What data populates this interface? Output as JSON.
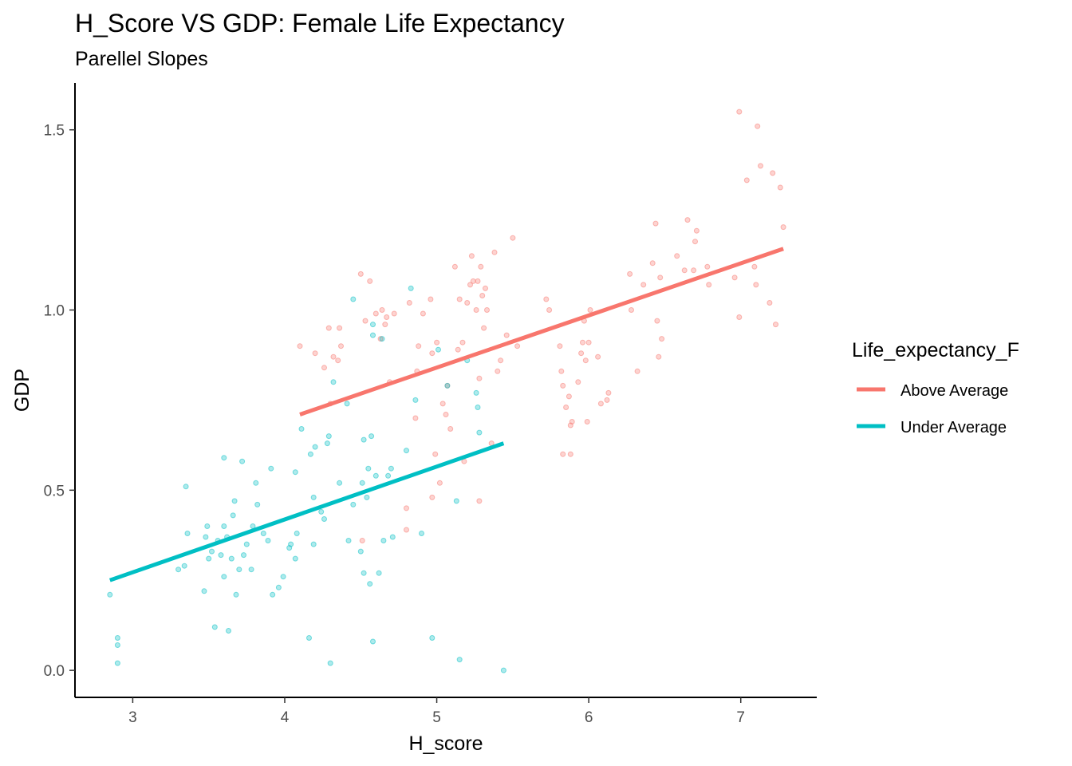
{
  "chart_data": {
    "type": "scatter",
    "title": "H_Score VS GDP: Female Life Expectancy",
    "subtitle": "Parellel Slopes",
    "xlabel": "H_score",
    "ylabel": "GDP",
    "xlim": [
      2.62,
      7.5
    ],
    "ylim": [
      -0.075,
      1.63
    ],
    "xticks": [
      3,
      4,
      5,
      6,
      7
    ],
    "yticks": [
      0.0,
      0.5,
      1.0,
      1.5
    ],
    "ytick_labels": [
      "0.0",
      "0.5",
      "1.0",
      "1.5"
    ],
    "grid": false,
    "legend": {
      "title": "Life_expectancy_F",
      "placement": "right"
    },
    "series": [
      {
        "name": "Above Average",
        "color": "#F8766D",
        "trend_line": [
          [
            4.1,
            0.71
          ],
          [
            7.28,
            1.17
          ]
        ],
        "points": [
          [
            4.1,
            0.9
          ],
          [
            4.2,
            0.88
          ],
          [
            4.26,
            0.84
          ],
          [
            4.29,
            0.95
          ],
          [
            4.32,
            0.87
          ],
          [
            4.36,
            0.95
          ],
          [
            4.37,
            0.9
          ],
          [
            4.3,
            0.74
          ],
          [
            4.35,
            0.86
          ],
          [
            4.5,
            1.1
          ],
          [
            4.56,
            1.08
          ],
          [
            4.51,
            0.36
          ],
          [
            4.53,
            0.97
          ],
          [
            4.6,
            0.99
          ],
          [
            4.63,
            0.92
          ],
          [
            4.64,
            1.0
          ],
          [
            4.66,
            0.96
          ],
          [
            4.67,
            0.98
          ],
          [
            4.69,
            0.8
          ],
          [
            4.72,
            0.99
          ],
          [
            4.8,
            0.45
          ],
          [
            4.8,
            0.39
          ],
          [
            4.82,
            1.02
          ],
          [
            4.86,
            0.7
          ],
          [
            4.87,
            0.83
          ],
          [
            4.88,
            0.9
          ],
          [
            4.91,
            0.99
          ],
          [
            4.96,
            1.03
          ],
          [
            4.97,
            0.88
          ],
          [
            4.99,
            0.6
          ],
          [
            4.97,
            0.48
          ],
          [
            5.0,
            0.91
          ],
          [
            5.02,
            0.52
          ],
          [
            5.04,
            0.74
          ],
          [
            5.06,
            0.71
          ],
          [
            5.07,
            0.79
          ],
          [
            5.09,
            0.67
          ],
          [
            5.12,
            1.12
          ],
          [
            5.14,
            0.89
          ],
          [
            5.15,
            1.03
          ],
          [
            5.17,
            0.91
          ],
          [
            5.18,
            0.58
          ],
          [
            5.2,
            1.02
          ],
          [
            5.22,
            1.07
          ],
          [
            5.23,
            1.15
          ],
          [
            5.24,
            1.08
          ],
          [
            5.26,
            1.0
          ],
          [
            5.27,
            1.08
          ],
          [
            5.28,
            0.81
          ],
          [
            5.29,
            1.12
          ],
          [
            5.3,
            1.04
          ],
          [
            5.31,
            0.95
          ],
          [
            5.32,
            1.06
          ],
          [
            5.33,
            1.0
          ],
          [
            5.28,
            0.47
          ],
          [
            5.36,
            0.63
          ],
          [
            5.38,
            1.16
          ],
          [
            5.4,
            0.83
          ],
          [
            5.42,
            0.86
          ],
          [
            5.46,
            0.93
          ],
          [
            5.5,
            1.2
          ],
          [
            5.53,
            0.9
          ],
          [
            5.72,
            1.03
          ],
          [
            5.74,
            1.0
          ],
          [
            5.81,
            0.9
          ],
          [
            5.82,
            0.83
          ],
          [
            5.83,
            0.79
          ],
          [
            5.83,
            0.6
          ],
          [
            5.85,
            0.73
          ],
          [
            5.87,
            0.76
          ],
          [
            5.88,
            0.68
          ],
          [
            5.89,
            0.69
          ],
          [
            5.88,
            0.6
          ],
          [
            5.93,
            0.8
          ],
          [
            5.95,
            0.88
          ],
          [
            5.96,
            0.91
          ],
          [
            5.97,
            0.97
          ],
          [
            5.98,
            0.86
          ],
          [
            5.99,
            0.69
          ],
          [
            6.0,
            0.91
          ],
          [
            6.01,
            1.0
          ],
          [
            6.06,
            0.87
          ],
          [
            6.08,
            0.74
          ],
          [
            6.12,
            0.75
          ],
          [
            6.13,
            0.77
          ],
          [
            6.27,
            1.1
          ],
          [
            6.28,
            1.0
          ],
          [
            6.32,
            0.83
          ],
          [
            6.36,
            1.07
          ],
          [
            6.42,
            1.13
          ],
          [
            6.44,
            1.24
          ],
          [
            6.45,
            0.97
          ],
          [
            6.46,
            0.87
          ],
          [
            6.47,
            1.09
          ],
          [
            6.48,
            0.92
          ],
          [
            6.58,
            1.15
          ],
          [
            6.63,
            1.11
          ],
          [
            6.65,
            1.25
          ],
          [
            6.69,
            1.11
          ],
          [
            6.7,
            1.19
          ],
          [
            6.71,
            1.22
          ],
          [
            6.78,
            1.12
          ],
          [
            6.79,
            1.07
          ],
          [
            6.96,
            1.09
          ],
          [
            6.99,
            0.98
          ],
          [
            6.99,
            1.55
          ],
          [
            7.04,
            1.36
          ],
          [
            7.09,
            1.12
          ],
          [
            7.1,
            1.07
          ],
          [
            7.11,
            1.51
          ],
          [
            7.13,
            1.4
          ],
          [
            7.19,
            1.02
          ],
          [
            7.21,
            1.38
          ],
          [
            7.23,
            0.96
          ],
          [
            7.26,
            1.34
          ],
          [
            7.28,
            1.23
          ]
        ]
      },
      {
        "name": "Under Average",
        "color": "#00BFC4",
        "trend_line": [
          [
            2.85,
            0.25
          ],
          [
            5.44,
            0.63
          ]
        ],
        "points": [
          [
            2.85,
            0.21
          ],
          [
            2.9,
            0.09
          ],
          [
            2.9,
            0.07
          ],
          [
            2.9,
            0.02
          ],
          [
            3.3,
            0.28
          ],
          [
            3.34,
            0.29
          ],
          [
            3.35,
            0.51
          ],
          [
            3.36,
            0.38
          ],
          [
            3.47,
            0.22
          ],
          [
            3.48,
            0.37
          ],
          [
            3.49,
            0.4
          ],
          [
            3.5,
            0.31
          ],
          [
            3.52,
            0.33
          ],
          [
            3.54,
            0.12
          ],
          [
            3.56,
            0.36
          ],
          [
            3.58,
            0.32
          ],
          [
            3.6,
            0.26
          ],
          [
            3.6,
            0.59
          ],
          [
            3.6,
            0.4
          ],
          [
            3.62,
            0.37
          ],
          [
            3.63,
            0.11
          ],
          [
            3.65,
            0.31
          ],
          [
            3.66,
            0.43
          ],
          [
            3.67,
            0.47
          ],
          [
            3.68,
            0.21
          ],
          [
            3.7,
            0.28
          ],
          [
            3.72,
            0.58
          ],
          [
            3.73,
            0.32
          ],
          [
            3.75,
            0.35
          ],
          [
            3.78,
            0.28
          ],
          [
            3.79,
            0.4
          ],
          [
            3.81,
            0.52
          ],
          [
            3.82,
            0.46
          ],
          [
            3.86,
            0.38
          ],
          [
            3.89,
            0.36
          ],
          [
            3.91,
            0.56
          ],
          [
            3.92,
            0.21
          ],
          [
            3.96,
            0.23
          ],
          [
            3.99,
            0.26
          ],
          [
            4.03,
            0.34
          ],
          [
            4.04,
            0.35
          ],
          [
            4.07,
            0.31
          ],
          [
            4.08,
            0.38
          ],
          [
            4.07,
            0.55
          ],
          [
            4.11,
            0.67
          ],
          [
            4.16,
            0.09
          ],
          [
            4.17,
            0.6
          ],
          [
            4.19,
            0.48
          ],
          [
            4.19,
            0.35
          ],
          [
            4.2,
            0.62
          ],
          [
            4.24,
            0.44
          ],
          [
            4.26,
            0.42
          ],
          [
            4.28,
            0.63
          ],
          [
            4.29,
            0.65
          ],
          [
            4.3,
            0.02
          ],
          [
            4.32,
            0.8
          ],
          [
            4.36,
            0.52
          ],
          [
            4.41,
            0.74
          ],
          [
            4.42,
            0.36
          ],
          [
            4.45,
            0.46
          ],
          [
            4.45,
            1.03
          ],
          [
            4.5,
            0.33
          ],
          [
            4.51,
            0.52
          ],
          [
            4.52,
            0.64
          ],
          [
            4.52,
            0.27
          ],
          [
            4.54,
            0.48
          ],
          [
            4.55,
            0.56
          ],
          [
            4.56,
            0.24
          ],
          [
            4.57,
            0.65
          ],
          [
            4.58,
            0.96
          ],
          [
            4.58,
            0.93
          ],
          [
            4.58,
            0.08
          ],
          [
            4.6,
            0.54
          ],
          [
            4.62,
            0.27
          ],
          [
            4.64,
            0.92
          ],
          [
            4.65,
            0.36
          ],
          [
            4.68,
            0.54
          ],
          [
            4.7,
            0.56
          ],
          [
            4.71,
            0.37
          ],
          [
            4.8,
            0.61
          ],
          [
            4.83,
            1.06
          ],
          [
            4.86,
            0.75
          ],
          [
            4.9,
            0.38
          ],
          [
            4.97,
            0.09
          ],
          [
            5.01,
            0.89
          ],
          [
            5.07,
            0.79
          ],
          [
            5.13,
            0.47
          ],
          [
            5.15,
            0.03
          ],
          [
            5.2,
            0.86
          ],
          [
            5.26,
            0.77
          ],
          [
            5.27,
            0.73
          ],
          [
            5.28,
            0.66
          ],
          [
            5.44,
            0.0
          ]
        ]
      }
    ]
  }
}
